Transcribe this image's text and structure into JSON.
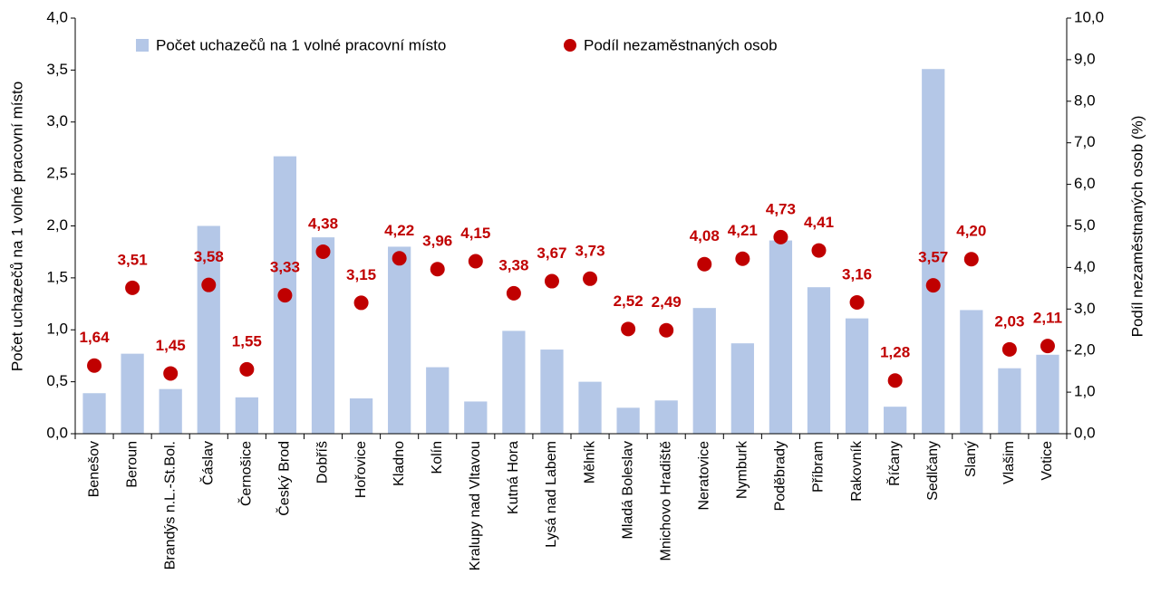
{
  "chart_data": {
    "type": "combo",
    "categories": [
      "Benešov",
      "Beroun",
      "Brandýs n.L.-St.Bol.",
      "Čáslav",
      "Černošice",
      "Český Brod",
      "Dobříš",
      "Hořovice",
      "Kladno",
      "Kolín",
      "Kralupy nad Vltavou",
      "Kutná Hora",
      "Lysá nad Labem",
      "Mělník",
      "Mladá Boleslav",
      "Mnichovo Hradiště",
      "Neratovice",
      "Nymburk",
      "Poděbrady",
      "Příbram",
      "Rakovník",
      "Říčany",
      "Sedlčany",
      "Slaný",
      "Vlašim",
      "Votice"
    ],
    "series": [
      {
        "name": "Počet uchazečů na 1 volné pracovní místo",
        "type": "bar",
        "color": "#b4c7e7",
        "values": [
          0.39,
          0.77,
          0.43,
          2.0,
          0.35,
          2.67,
          1.89,
          0.34,
          1.8,
          0.64,
          0.31,
          0.99,
          0.81,
          0.5,
          0.25,
          0.32,
          1.21,
          0.87,
          1.86,
          1.41,
          1.11,
          0.26,
          3.51,
          1.19,
          0.63,
          0.76
        ]
      },
      {
        "name": "Podíl nezaměstnaných osob",
        "type": "scatter",
        "axis": "y2",
        "color": "#c00000",
        "values": [
          1.64,
          3.51,
          1.45,
          3.58,
          1.55,
          3.33,
          4.38,
          3.15,
          4.22,
          3.96,
          4.15,
          3.38,
          3.67,
          3.73,
          2.52,
          2.49,
          4.08,
          4.21,
          4.73,
          4.41,
          3.16,
          1.28,
          3.57,
          4.2,
          2.03,
          2.11
        ],
        "value_labels": [
          "1,64",
          "3,51",
          "1,45",
          "3,58",
          "1,55",
          "3,33",
          "4,38",
          "3,15",
          "4,22",
          "3,96",
          "4,15",
          "3,38",
          "3,67",
          "3,73",
          "2,52",
          "2,49",
          "4,08",
          "4,21",
          "4,73",
          "4,41",
          "3,16",
          "1,28",
          "3,57",
          "4,20",
          "2,03",
          "2,11"
        ]
      }
    ],
    "ylabel": "Počet uchazečů na 1 volné pracovní místo",
    "y2label": "Podíl nezaměstnaných osob (%)",
    "ylim": [
      0,
      4
    ],
    "yticks": [
      {
        "value": 0,
        "label": "0,0"
      },
      {
        "value": 0.5,
        "label": "0,5"
      },
      {
        "value": 1,
        "label": "1,0"
      },
      {
        "value": 1.5,
        "label": "1,5"
      },
      {
        "value": 2,
        "label": "2,0"
      },
      {
        "value": 2.5,
        "label": "2,5"
      },
      {
        "value": 3,
        "label": "3,0"
      },
      {
        "value": 3.5,
        "label": "3,5"
      },
      {
        "value": 4,
        "label": "4,0"
      }
    ],
    "y2lim": [
      0,
      10
    ],
    "y2ticks": [
      {
        "value": 0,
        "label": "0,0"
      },
      {
        "value": 1,
        "label": "1,0"
      },
      {
        "value": 2,
        "label": "2,0"
      },
      {
        "value": 3,
        "label": "3,0"
      },
      {
        "value": 4,
        "label": "4,0"
      },
      {
        "value": 5,
        "label": "5,0"
      },
      {
        "value": 6,
        "label": "6,0"
      },
      {
        "value": 7,
        "label": "7,0"
      },
      {
        "value": 8,
        "label": "8,0"
      },
      {
        "value": 9,
        "label": "9,0"
      },
      {
        "value": 10,
        "label": "10,0"
      }
    ],
    "legend": "top"
  }
}
